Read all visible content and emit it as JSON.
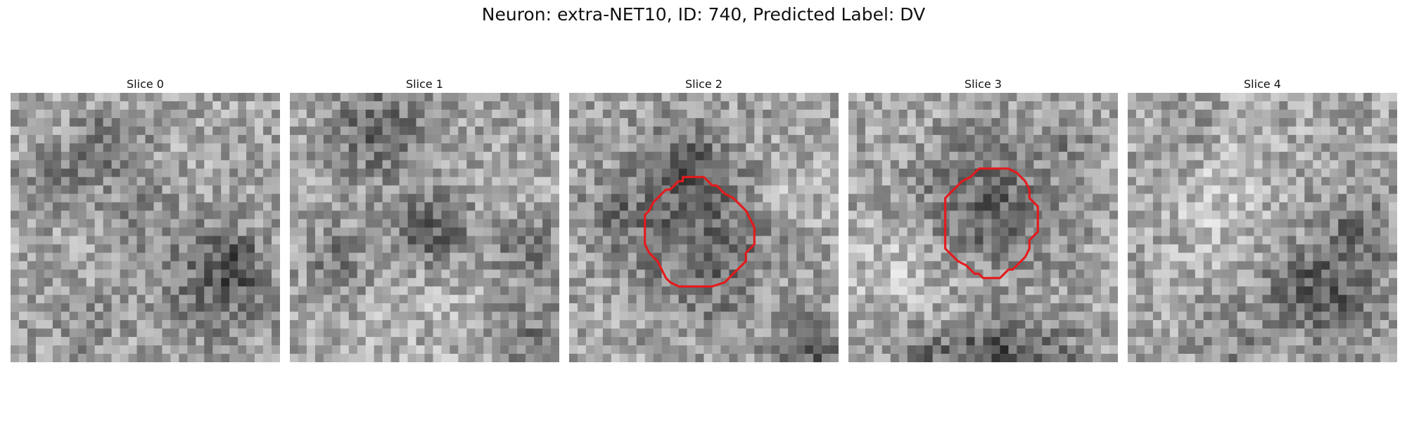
{
  "figure": {
    "title": "Neuron: extra-NET10, ID: 740, Predicted Label: DV"
  },
  "contour_color": "#e41a1c",
  "panels": [
    {
      "label": "Slice 0",
      "has_contour": false
    },
    {
      "label": "Slice 1",
      "has_contour": false
    },
    {
      "label": "Slice 2",
      "has_contour": true
    },
    {
      "label": "Slice 3",
      "has_contour": true
    },
    {
      "label": "Slice 4",
      "has_contour": false
    }
  ]
}
